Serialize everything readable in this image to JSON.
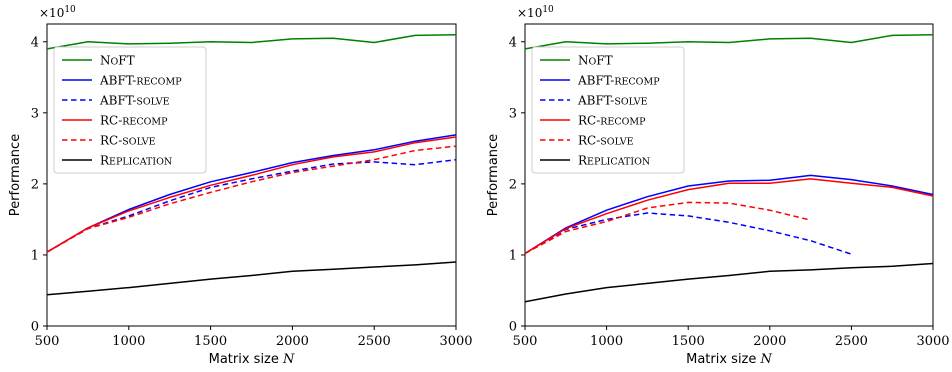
{
  "chart_data": [
    {
      "type": "line",
      "multiplier": "×10",
      "multiplier_exp": "10",
      "xlabel": "Matrix size",
      "xlabel_var": "N",
      "ylabel": "Performance",
      "xlim": [
        500,
        3000
      ],
      "ylim": [
        0,
        4.25
      ],
      "xticks": [
        500,
        1000,
        1500,
        2000,
        2500,
        3000
      ],
      "yticks": [
        0,
        1,
        2,
        3,
        4
      ],
      "legend_position": "upper-left",
      "series": [
        {
          "name": "NoFT",
          "color": "#008000",
          "dash": "solid",
          "x": [
            500,
            750,
            1000,
            1250,
            1500,
            1750,
            2000,
            2250,
            2500,
            2750,
            3000
          ],
          "y": [
            3.9,
            4.0,
            3.97,
            3.98,
            4.0,
            3.99,
            4.04,
            4.05,
            3.99,
            4.09,
            4.1
          ]
        },
        {
          "name": "ABFT-recomp",
          "color": "#0000ff",
          "dash": "solid",
          "x": [
            500,
            750,
            1000,
            1250,
            1500,
            1750,
            2000,
            2250,
            2500,
            2750,
            3000
          ],
          "y": [
            1.04,
            1.38,
            1.64,
            1.85,
            2.03,
            2.16,
            2.3,
            2.4,
            2.48,
            2.6,
            2.69
          ]
        },
        {
          "name": "ABFT-solve",
          "color": "#0000ff",
          "dash": "dashed",
          "x": [
            500,
            750,
            1000,
            1250,
            1500,
            1750,
            2000,
            2250,
            2500,
            2750,
            3000
          ],
          "y": [
            1.04,
            1.37,
            1.55,
            1.76,
            1.95,
            2.07,
            2.18,
            2.28,
            2.31,
            2.27,
            2.34
          ]
        },
        {
          "name": "RC-recomp",
          "color": "#ff0000",
          "dash": "solid",
          "x": [
            500,
            750,
            1000,
            1250,
            1500,
            1750,
            2000,
            2250,
            2500,
            2750,
            3000
          ],
          "y": [
            1.04,
            1.38,
            1.62,
            1.81,
            1.98,
            2.12,
            2.27,
            2.38,
            2.45,
            2.58,
            2.66
          ]
        },
        {
          "name": "RC-solve",
          "color": "#ff0000",
          "dash": "dashed",
          "x": [
            500,
            750,
            1000,
            1250,
            1500,
            1750,
            2000,
            2250,
            2500,
            2750,
            3000
          ],
          "y": [
            1.04,
            1.37,
            1.53,
            1.72,
            1.88,
            2.03,
            2.16,
            2.25,
            2.34,
            2.47,
            2.53
          ]
        },
        {
          "name": "Replication",
          "color": "#000000",
          "dash": "solid",
          "x": [
            500,
            750,
            1000,
            1250,
            1500,
            1750,
            2000,
            2250,
            2500,
            2750,
            3000
          ],
          "y": [
            0.44,
            0.49,
            0.54,
            0.6,
            0.66,
            0.71,
            0.77,
            0.8,
            0.83,
            0.86,
            0.9
          ]
        }
      ]
    },
    {
      "type": "line",
      "multiplier": "×10",
      "multiplier_exp": "10",
      "xlabel": "Matrix size",
      "xlabel_var": "N",
      "ylabel": "Performance",
      "xlim": [
        500,
        3000
      ],
      "ylim": [
        0,
        4.25
      ],
      "xticks": [
        500,
        1000,
        1500,
        2000,
        2500,
        3000
      ],
      "yticks": [
        0,
        1,
        2,
        3,
        4
      ],
      "legend_position": "upper-left",
      "series": [
        {
          "name": "NoFT",
          "color": "#008000",
          "dash": "solid",
          "x": [
            500,
            750,
            1000,
            1250,
            1500,
            1750,
            2000,
            2250,
            2500,
            2750,
            3000
          ],
          "y": [
            3.9,
            4.0,
            3.97,
            3.98,
            4.0,
            3.99,
            4.04,
            4.05,
            3.99,
            4.09,
            4.1
          ]
        },
        {
          "name": "ABFT-recomp",
          "color": "#0000ff",
          "dash": "solid",
          "x": [
            500,
            750,
            1000,
            1250,
            1500,
            1750,
            2000,
            2250,
            2500,
            2750,
            3000
          ],
          "y": [
            1.02,
            1.38,
            1.63,
            1.82,
            1.97,
            2.04,
            2.05,
            2.12,
            2.06,
            1.97,
            1.85
          ]
        },
        {
          "name": "ABFT-solve",
          "color": "#0000ff",
          "dash": "dashed",
          "x": [
            500,
            750,
            1000,
            1250,
            1500,
            1750,
            2000,
            2250,
            2500
          ],
          "y": [
            1.02,
            1.36,
            1.5,
            1.59,
            1.55,
            1.46,
            1.34,
            1.2,
            1.01
          ]
        },
        {
          "name": "RC-recomp",
          "color": "#ff0000",
          "dash": "solid",
          "x": [
            500,
            750,
            1000,
            1250,
            1500,
            1750,
            2000,
            2250,
            2500,
            2750,
            3000
          ],
          "y": [
            1.02,
            1.37,
            1.58,
            1.77,
            1.92,
            2.01,
            2.01,
            2.07,
            2.01,
            1.95,
            1.83
          ]
        },
        {
          "name": "RC-solve",
          "color": "#ff0000",
          "dash": "dashed",
          "x": [
            500,
            750,
            1000,
            1250,
            1500,
            1750,
            2000,
            2250
          ],
          "y": [
            1.02,
            1.33,
            1.47,
            1.66,
            1.74,
            1.73,
            1.63,
            1.49
          ]
        },
        {
          "name": "Replication",
          "color": "#000000",
          "dash": "solid",
          "x": [
            500,
            750,
            1000,
            1250,
            1500,
            1750,
            2000,
            2250,
            2500,
            2750,
            3000
          ],
          "y": [
            0.34,
            0.45,
            0.54,
            0.6,
            0.66,
            0.71,
            0.77,
            0.79,
            0.82,
            0.84,
            0.88
          ]
        }
      ]
    }
  ]
}
